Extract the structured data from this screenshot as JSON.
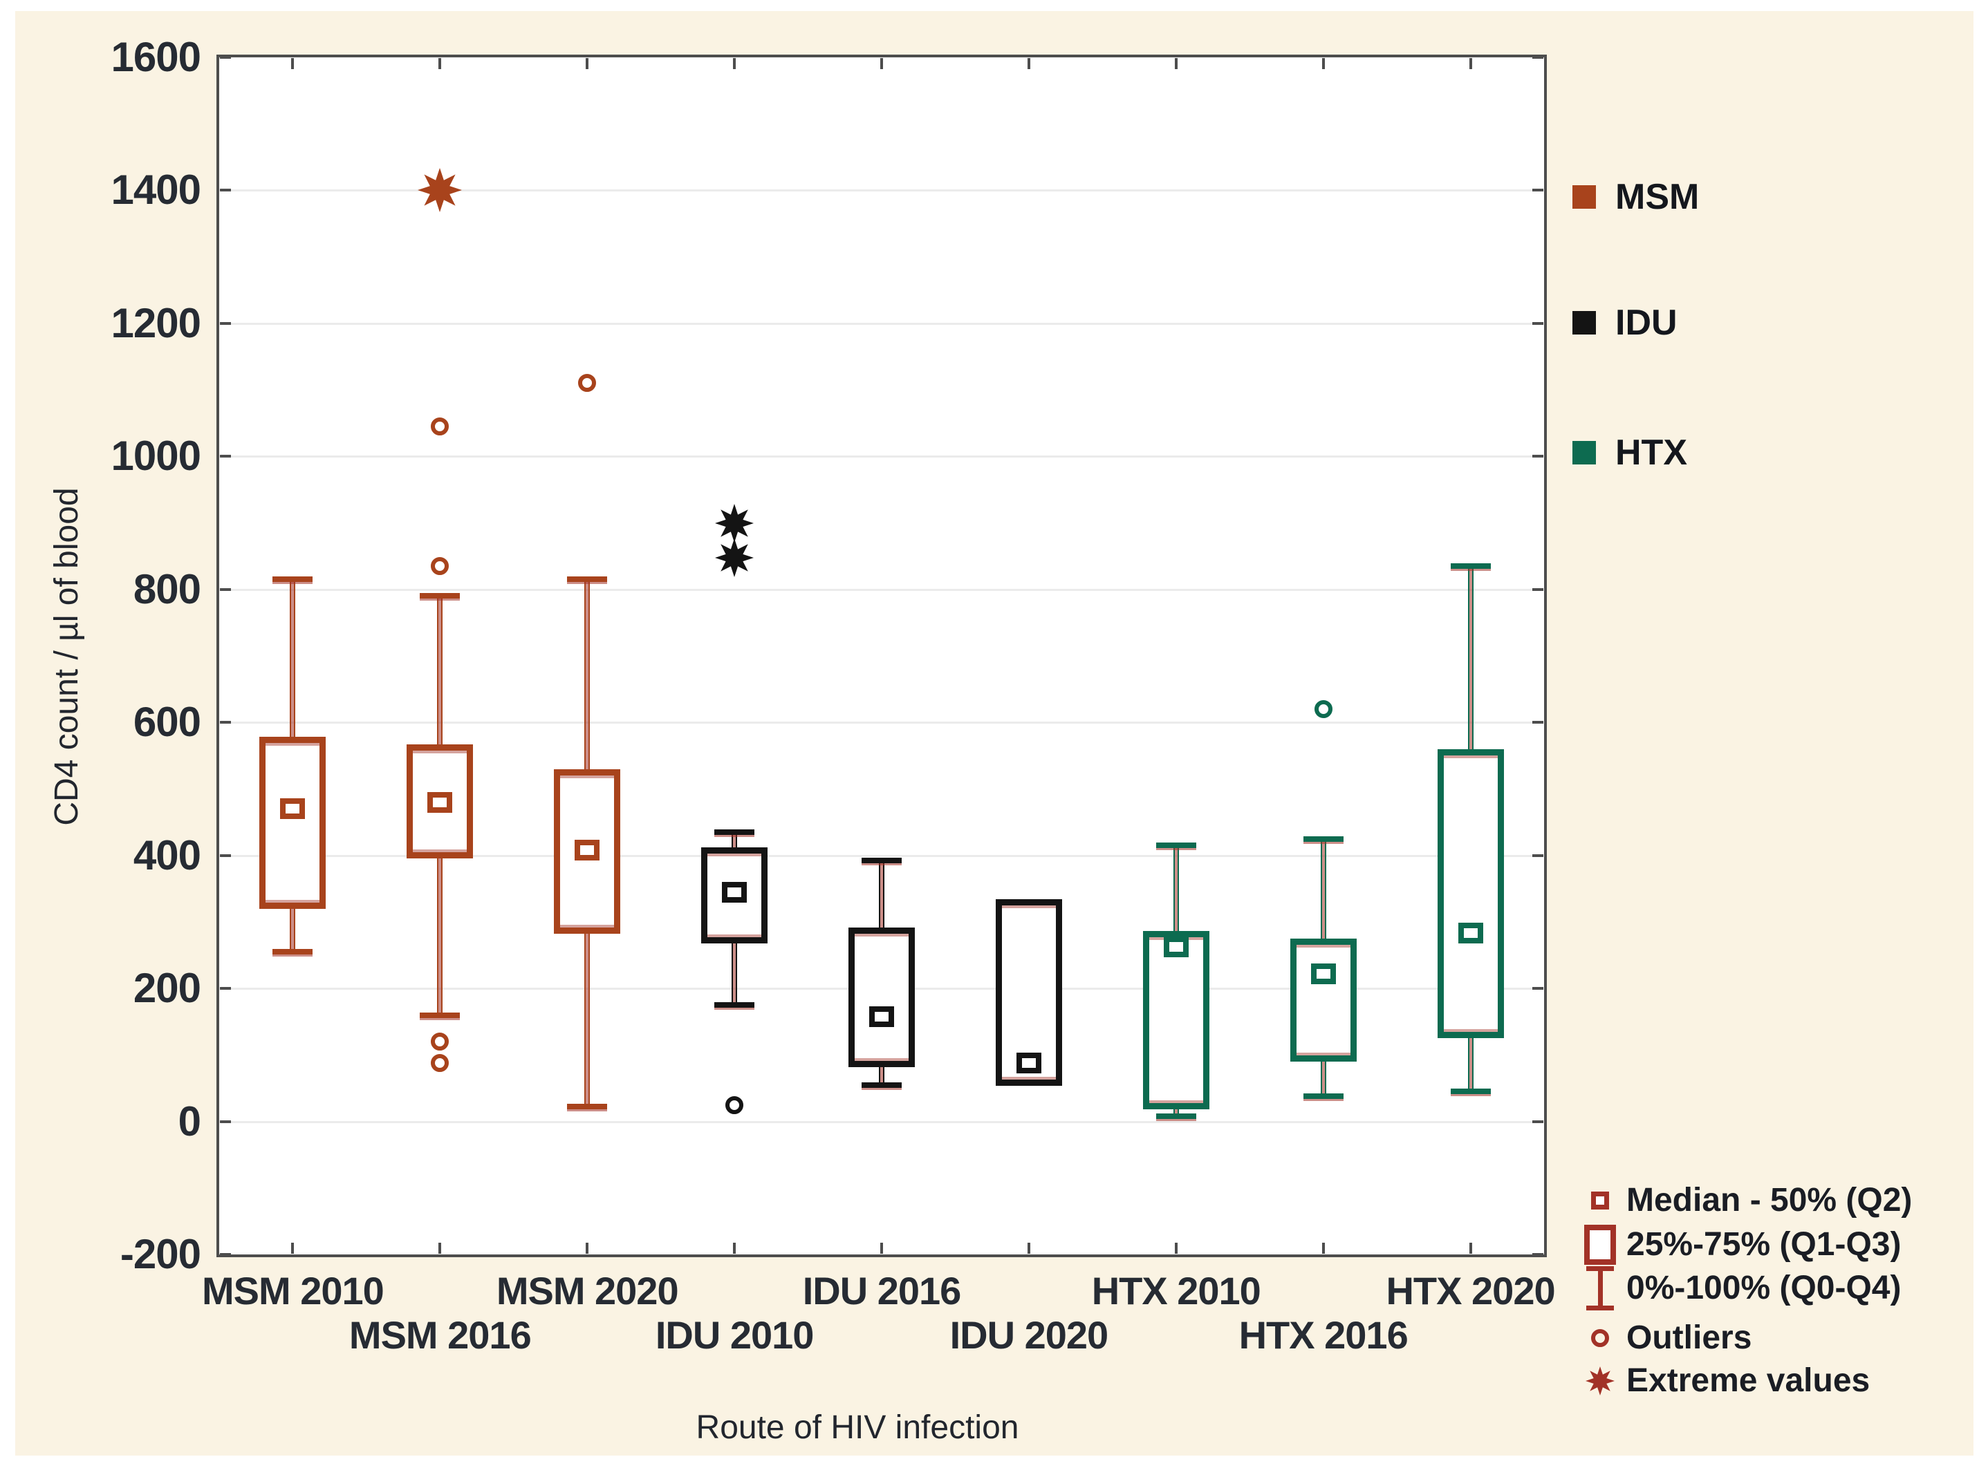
{
  "figure": {
    "canvas_color": "#FAF3E3",
    "accent_red": "#A23227",
    "series_legend": [
      {
        "label": "MSM",
        "color": "#A8431C"
      },
      {
        "label": "IDU",
        "color": "#141414"
      },
      {
        "label": "HTX",
        "color": "#0D6B50"
      }
    ],
    "symbol_legend": [
      {
        "symbol": "median-square",
        "label": "Median - 50% (Q2)"
      },
      {
        "symbol": "box-square",
        "label": "25%-75% (Q1-Q3)"
      },
      {
        "symbol": "whisker-ibeam",
        "label": "0%-100% (Q0-Q4)"
      },
      {
        "symbol": "outlier-circle",
        "label": "Outliers"
      },
      {
        "symbol": "extreme-star",
        "label": "Extreme values"
      }
    ]
  },
  "chart_data": {
    "type": "box",
    "title": "",
    "xlabel": "Route of HIV infection",
    "ylabel": "CD4 count / µl of blood",
    "ylim": [
      -200,
      1600
    ],
    "yticks": [
      1600,
      1400,
      1200,
      1000,
      800,
      600,
      400,
      200,
      0,
      -200
    ],
    "grid": true,
    "legend_position": "right",
    "categories": [
      "MSM 2010",
      "MSM 2016",
      "MSM 2020",
      "IDU 2010",
      "IDU 2016",
      "IDU 2020",
      "HTX 2010",
      "HTX 2016",
      "HTX 2020"
    ],
    "group_colors": {
      "MSM": "#A8431C",
      "IDU": "#141414",
      "HTX": "#0D6B50"
    },
    "boxes": [
      {
        "label": "MSM 2010",
        "group": "MSM",
        "q0": 255,
        "q1": 320,
        "median": 470,
        "q3": 578,
        "q4": 815,
        "outliers": [],
        "extremes": []
      },
      {
        "label": "MSM 2016",
        "group": "MSM",
        "q0": 160,
        "q1": 395,
        "median": 480,
        "q3": 567,
        "q4": 790,
        "outliers": [
          1045,
          835,
          120,
          88
        ],
        "extremes": [
          1400
        ]
      },
      {
        "label": "MSM 2020",
        "group": "MSM",
        "q0": 22,
        "q1": 282,
        "median": 408,
        "q3": 530,
        "q4": 815,
        "outliers": [
          1110
        ],
        "extremes": []
      },
      {
        "label": "IDU 2010",
        "group": "IDU",
        "q0": 175,
        "q1": 268,
        "median": 345,
        "q3": 412,
        "q4": 435,
        "outliers": [
          25
        ],
        "extremes": [
          900,
          848
        ]
      },
      {
        "label": "IDU 2016",
        "group": "IDU",
        "q0": 55,
        "q1": 82,
        "median": 158,
        "q3": 292,
        "q4": 392,
        "outliers": [],
        "extremes": []
      },
      {
        "label": "IDU 2020",
        "group": "IDU",
        "q0": 54,
        "q1": 54,
        "median": 88,
        "q3": 334,
        "q4": 334,
        "outliers": [],
        "extremes": []
      },
      {
        "label": "HTX 2010",
        "group": "HTX",
        "q0": 8,
        "q1": 18,
        "median": 262,
        "q3": 286,
        "q4": 415,
        "outliers": [],
        "extremes": []
      },
      {
        "label": "HTX 2016",
        "group": "HTX",
        "q0": 38,
        "q1": 90,
        "median": 222,
        "q3": 275,
        "q4": 425,
        "outliers": [
          620
        ],
        "extremes": []
      },
      {
        "label": "HTX 2020",
        "group": "HTX",
        "q0": 45,
        "q1": 125,
        "median": 283,
        "q3": 560,
        "q4": 835,
        "outliers": [],
        "extremes": []
      }
    ]
  }
}
